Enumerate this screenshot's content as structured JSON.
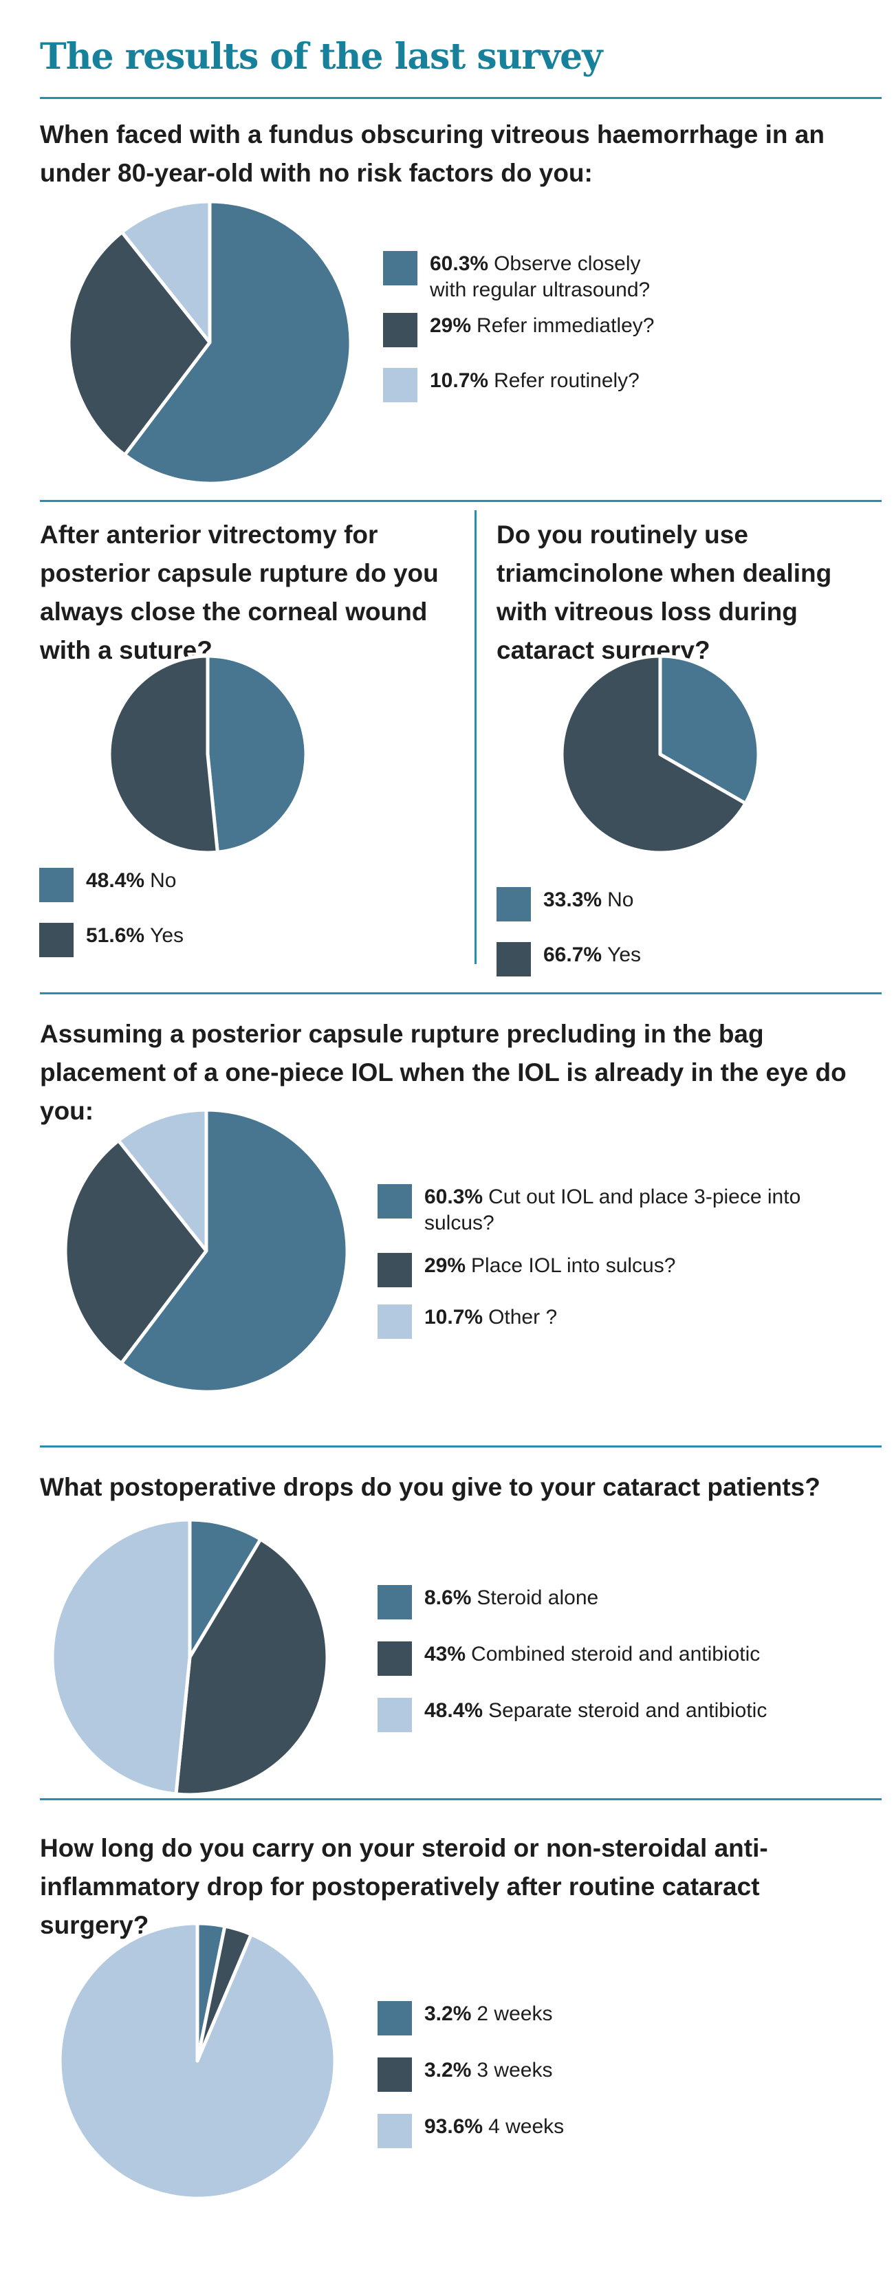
{
  "title": "The results of the last survey",
  "colors": {
    "blue": "#48758f",
    "dark": "#3d4f5a",
    "light": "#b3c9df",
    "accent": "#17809b"
  },
  "chart_data": [
    {
      "type": "pie",
      "title": "When faced with a fundus obscuring vitreous haemorrhage in an under 80-year-old with no risk factors do you:",
      "slices": [
        {
          "value": 60.3,
          "pct": "60.3%",
          "label": "Observe closely with regular ultrasound?",
          "color": "#48758f"
        },
        {
          "value": 29,
          "pct": "29%",
          "label": "Refer immediatley?",
          "color": "#3d4f5a"
        },
        {
          "value": 10.7,
          "pct": "10.7%",
          "label": "Refer routinely?",
          "color": "#b3c9df"
        }
      ]
    },
    {
      "type": "pie",
      "title": "After anterior vitrectomy for posterior capsule rupture do you always close the corneal wound with a suture?",
      "slices": [
        {
          "value": 48.4,
          "pct": "48.4%",
          "label": "No",
          "color": "#48758f"
        },
        {
          "value": 51.6,
          "pct": "51.6%",
          "label": "Yes",
          "color": "#3d4f5a"
        }
      ]
    },
    {
      "type": "pie",
      "title": "Do you routinely use triamcinolone when dealing with vitreous loss during cataract surgery?",
      "slices": [
        {
          "value": 33.3,
          "pct": "33.3%",
          "label": "No",
          "color": "#48758f"
        },
        {
          "value": 66.7,
          "pct": "66.7%",
          "label": "Yes",
          "color": "#3d4f5a"
        }
      ]
    },
    {
      "type": "pie",
      "title": "Assuming a posterior capsule rupture precluding in the bag placement of a one-piece IOL when the IOL is already in the eye do you:",
      "slices": [
        {
          "value": 60.3,
          "pct": "60.3%",
          "label": "Cut out IOL and place 3-piece into sulcus?",
          "color": "#48758f"
        },
        {
          "value": 29,
          "pct": "29%",
          "label": "Place IOL into sulcus?",
          "color": "#3d4f5a"
        },
        {
          "value": 10.7,
          "pct": "10.7%",
          "label": "Other ?",
          "color": "#b3c9df"
        }
      ]
    },
    {
      "type": "pie",
      "title": "What postoperative drops do you give to your cataract patients?",
      "slices": [
        {
          "value": 8.6,
          "pct": "8.6%",
          "label": "Steroid alone",
          "color": "#48758f"
        },
        {
          "value": 43,
          "pct": "43%",
          "label": "Combined steroid and antibiotic",
          "color": "#3d4f5a"
        },
        {
          "value": 48.4,
          "pct": "48.4%",
          "label": "Separate steroid and antibiotic",
          "color": "#b3c9df"
        }
      ]
    },
    {
      "type": "pie",
      "title": "How long do you carry on your steroid or non-steroidal anti-inflammatory drop for postoperatively after routine cataract surgery?",
      "slices": [
        {
          "value": 3.2,
          "pct": "3.2%",
          "label": "2 weeks",
          "color": "#48758f"
        },
        {
          "value": 3.2,
          "pct": "3.2%",
          "label": "3 weeks",
          "color": "#3d4f5a"
        },
        {
          "value": 93.6,
          "pct": "93.6%",
          "label": "4 weeks",
          "color": "#b3c9df"
        }
      ]
    }
  ]
}
